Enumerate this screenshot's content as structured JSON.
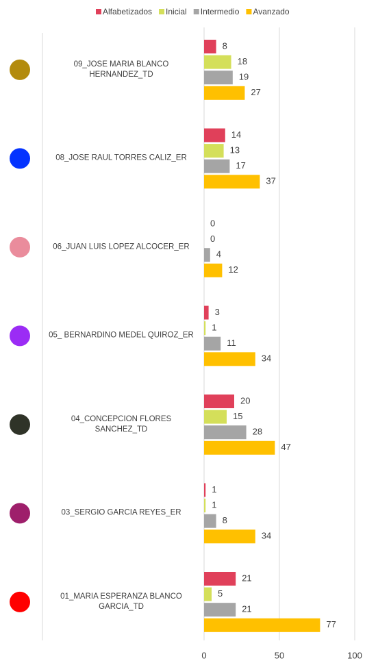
{
  "chart_data": {
    "type": "bar",
    "orientation": "horizontal",
    "categories": [
      "09_JOSE MARIA BLANCO HERNANDEZ_TD",
      "08_JOSE RAUL TORRES CALIZ_ER",
      "06_JUAN LUIS LOPEZ ALCOCER_ER",
      "05_ BERNARDINO MEDEL QUIROZ_ER",
      "04_CONCEPCION FLORES SANCHEZ_TD",
      "03_SERGIO GARCIA REYES_ER",
      "01_MARIA ESPERANZA BLANCO GARCIA_TD"
    ],
    "category_colors": [
      "#b38b0d",
      "#0433ff",
      "#ea8c9c",
      "#9b2cf5",
      "#2f3328",
      "#9e1f6b",
      "#ff0000"
    ],
    "series": [
      {
        "name": "Alfabetizados",
        "color": "#e0405a",
        "values": [
          8,
          14,
          0,
          3,
          20,
          1,
          21
        ]
      },
      {
        "name": "Inicial",
        "color": "#d4df5a",
        "values": [
          18,
          13,
          0,
          1,
          15,
          1,
          5
        ]
      },
      {
        "name": "Intermedio",
        "color": "#a5a5a5",
        "values": [
          19,
          17,
          4,
          11,
          28,
          8,
          21
        ]
      },
      {
        "name": "Avanzado",
        "color": "#ffc000",
        "values": [
          27,
          37,
          12,
          34,
          47,
          34,
          77
        ]
      }
    ],
    "xlim": [
      0,
      100
    ],
    "xticks": [
      0,
      50,
      100
    ],
    "grid": true,
    "legend": "top"
  }
}
